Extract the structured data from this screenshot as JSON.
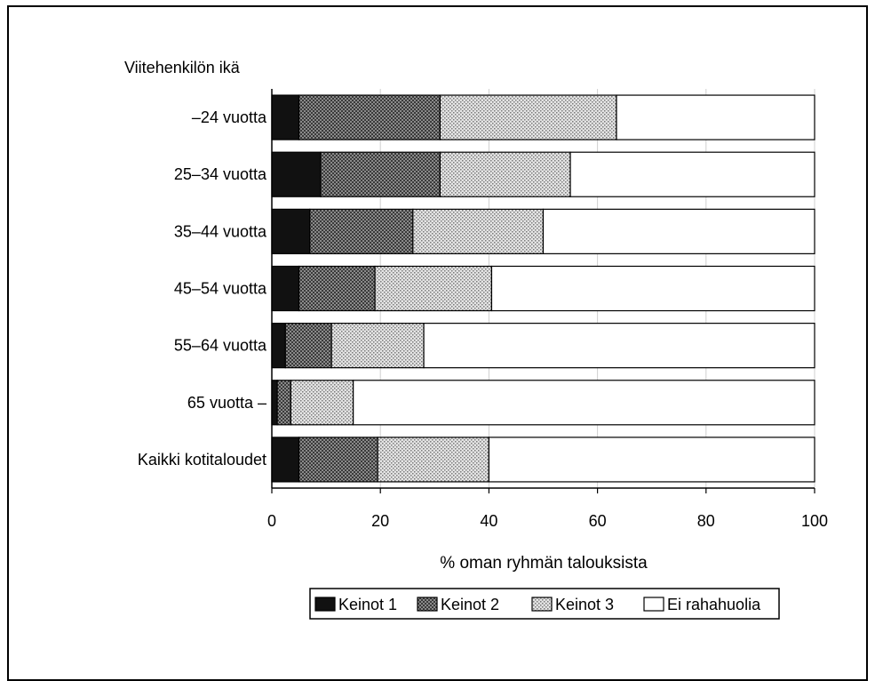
{
  "chart_data": {
    "type": "bar",
    "stacked": true,
    "orientation": "horizontal",
    "title": "",
    "category_axis_label": "Viitehenkilön ikä",
    "xlabel": "% oman ryhmän talouksista",
    "xlim": [
      0,
      100
    ],
    "x_ticks": [
      "0",
      "20",
      "40",
      "60",
      "80",
      "100"
    ],
    "grid": true,
    "legend_position": "bottom",
    "categories": [
      "–24 vuotta",
      "25–34 vuotta",
      "35–44 vuotta",
      "45–54 vuotta",
      "55–64 vuotta",
      "65 vuotta –",
      "Kaikki kotitaloudet"
    ],
    "series": [
      {
        "name": "Keinot 1",
        "values": [
          5,
          9,
          7,
          5,
          2.5,
          1,
          5
        ],
        "color": "#111111",
        "pattern": "solid"
      },
      {
        "name": "Keinot 2",
        "values": [
          26,
          22,
          19,
          14,
          8.5,
          2.5,
          14.5
        ],
        "color": "#6a6a6a",
        "pattern": "dense"
      },
      {
        "name": "Keinot 3",
        "values": [
          32.5,
          24,
          24,
          21.5,
          17,
          11.5,
          20.5
        ],
        "color": "#bdbdbd",
        "pattern": "light"
      },
      {
        "name": "Ei rahahuolia",
        "values": [
          36.5,
          45,
          50,
          59.5,
          72,
          85,
          60
        ],
        "color": "#ffffff",
        "pattern": "none"
      }
    ]
  }
}
